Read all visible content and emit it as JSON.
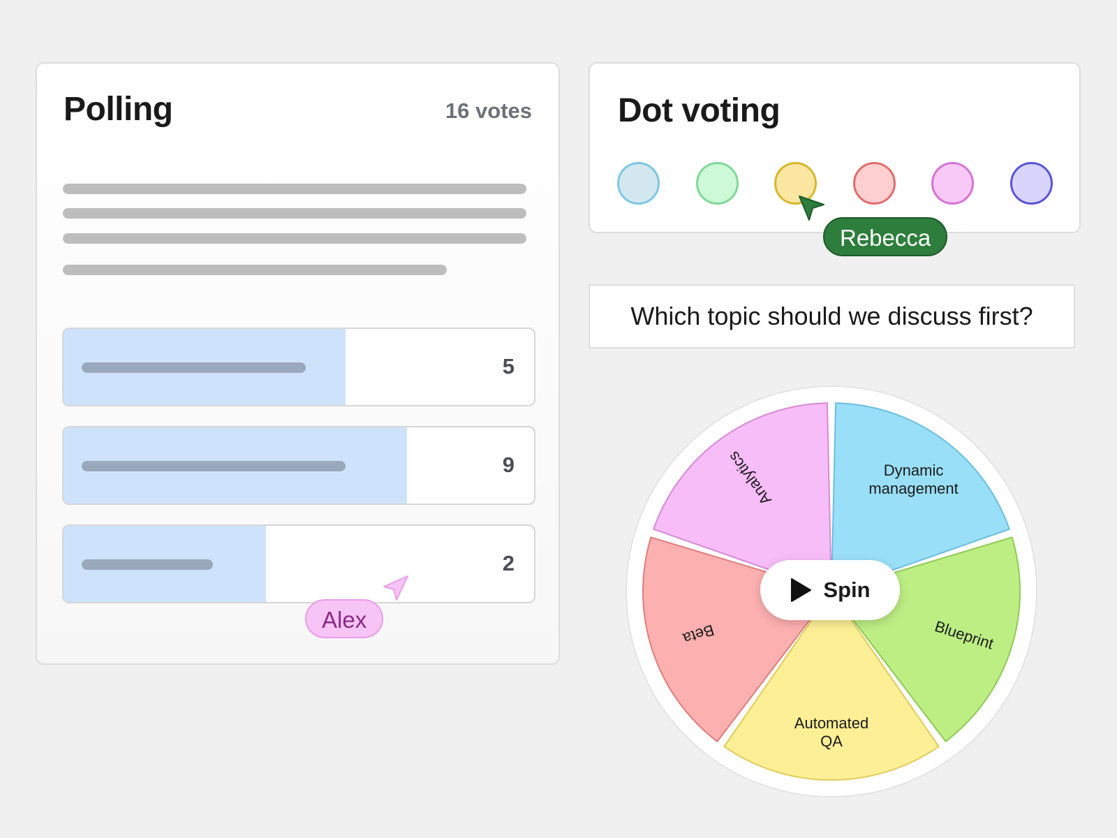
{
  "polling": {
    "title": "Polling",
    "votes": "16 votes",
    "options": [
      {
        "count": "5",
        "share": 0.6
      },
      {
        "count": "9",
        "share": 0.73
      },
      {
        "count": "2",
        "share": 0.43
      }
    ]
  },
  "dot_voting": {
    "title": "Dot voting",
    "dots": [
      {
        "fill": "#d3e8ee",
        "stroke": "#7cc7e3"
      },
      {
        "fill": "#cdf9d8",
        "stroke": "#7fd896"
      },
      {
        "fill": "#fbe7a2",
        "stroke": "#d8b62c"
      },
      {
        "fill": "#fdcfcf",
        "stroke": "#e06c6c"
      },
      {
        "fill": "#f8c8f6",
        "stroke": "#d475d2"
      },
      {
        "fill": "#d8d4fb",
        "stroke": "#5a52d9"
      }
    ]
  },
  "question": {
    "text": "Which topic should we discuss first?"
  },
  "wheel": {
    "spin_label": "Spin",
    "segments": [
      {
        "label": "Analytics",
        "fill": "#f7bdf9",
        "stroke": "#d68ad6"
      },
      {
        "label": "Dynamic management",
        "fill": "#9adff8",
        "stroke": "#6bbede"
      },
      {
        "label": "Blueprint",
        "fill": "#bdee84",
        "stroke": "#8fca55"
      },
      {
        "label": "Automated QA",
        "fill": "#fdef95",
        "stroke": "#e0cb5c"
      },
      {
        "label": "Beta",
        "fill": "#fdb0b0",
        "stroke": "#e07c7c"
      }
    ]
  },
  "cursors": {
    "rebecca": {
      "name": "Rebecca",
      "color": "#2d7d3c"
    },
    "alex": {
      "name": "Alex",
      "color": "#f6c4f5"
    }
  }
}
